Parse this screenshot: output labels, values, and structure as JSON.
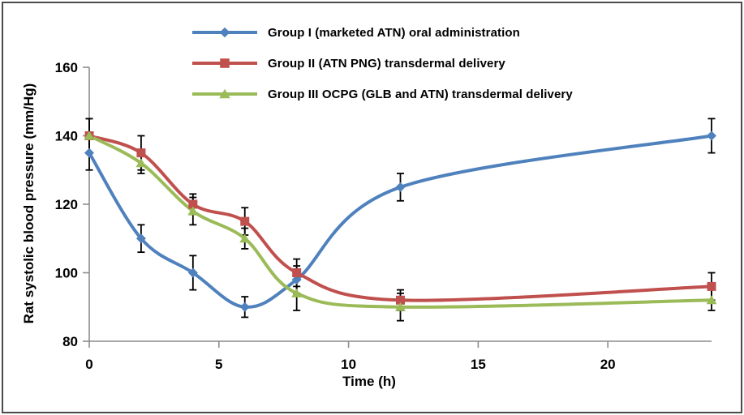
{
  "chart_data": {
    "type": "line",
    "title": "",
    "xlabel": "Time (h)",
    "ylabel": "Rat systolic blood pressure (mm/Hg)",
    "x": [
      0,
      2,
      4,
      6,
      8,
      12,
      24
    ],
    "xlim": [
      0,
      24
    ],
    "ylim": [
      80,
      160
    ],
    "xticks": [
      0,
      5,
      10,
      15,
      20
    ],
    "yticks": [
      80,
      100,
      120,
      140,
      160
    ],
    "grid": false,
    "legend_position": "inside-top-left",
    "line_style": "smooth",
    "error_bars": true,
    "colors": {
      "axis": "#8c8c8c",
      "tick_text": "#000000",
      "error_bar": "#000000",
      "frame": "#4a4a4a",
      "background": "#ffffff"
    },
    "series": [
      {
        "name": "Group I (marketed ATN) oral administration",
        "color": "#4F81BD",
        "marker": "diamond",
        "values": [
          135,
          110,
          100,
          90,
          98,
          125,
          140
        ],
        "errors": [
          5,
          4,
          5,
          3,
          4,
          4,
          5
        ]
      },
      {
        "name": "Group II (ATN PNG) transdermal delivery",
        "color": "#C0504D",
        "marker": "square",
        "values": [
          140,
          135,
          120,
          115,
          100,
          92,
          96
        ],
        "errors": [
          5,
          5,
          3,
          4,
          4,
          3,
          4
        ]
      },
      {
        "name": "Group III OCPG (GLB and ATN) transdermal delivery",
        "color": "#9BBB59",
        "marker": "triangle",
        "values": [
          140,
          132,
          118,
          110,
          94,
          90,
          92
        ],
        "errors": [
          5,
          3,
          4,
          3,
          5,
          4,
          3
        ]
      }
    ]
  }
}
